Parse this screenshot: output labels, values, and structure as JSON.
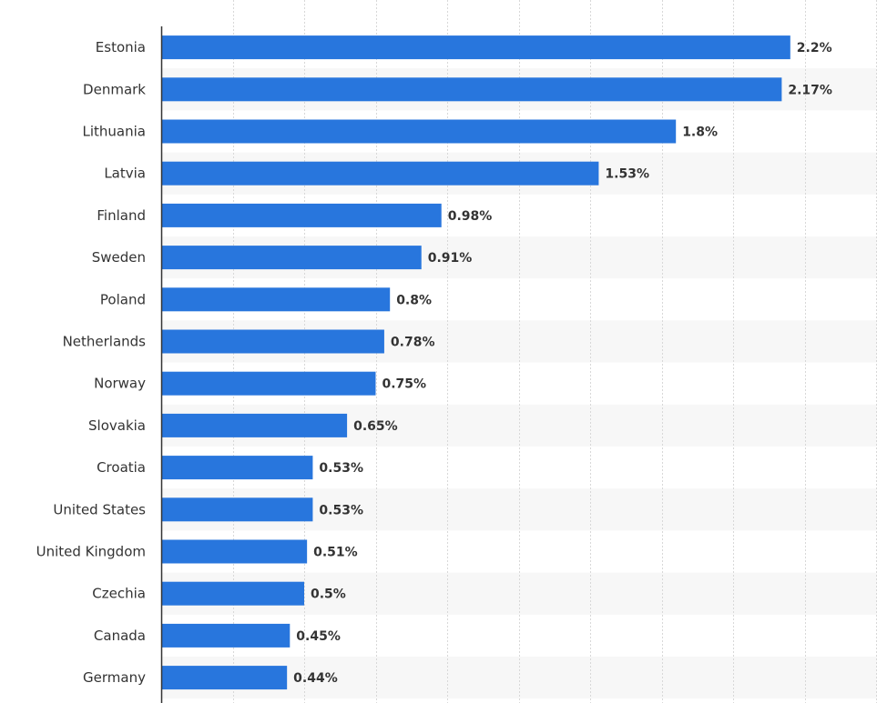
{
  "chart_data": {
    "type": "bar",
    "orientation": "horizontal",
    "title": "",
    "xlabel": "",
    "ylabel": "",
    "categories": [
      "Estonia",
      "Denmark",
      "Lithuania",
      "Latvia",
      "Finland",
      "Sweden",
      "Poland",
      "Netherlands",
      "Norway",
      "Slovakia",
      "Croatia",
      "United States",
      "United Kingdom",
      "Czechia",
      "Canada",
      "Germany"
    ],
    "values": [
      2.2,
      2.17,
      1.8,
      1.53,
      0.98,
      0.91,
      0.8,
      0.78,
      0.75,
      0.65,
      0.53,
      0.53,
      0.51,
      0.5,
      0.45,
      0.44
    ],
    "value_labels": [
      "2.2%",
      "2.17%",
      "1.8%",
      "1.53%",
      "0.98%",
      "0.91%",
      "0.8%",
      "0.78%",
      "0.75%",
      "0.65%",
      "0.53%",
      "0.53%",
      "0.51%",
      "0.5%",
      "0.45%",
      "0.44%"
    ],
    "xlim": [
      0,
      2.5
    ],
    "grid": true,
    "bar_color": "#2876dd",
    "stripe_color": "#f7f7f7",
    "gridline_color": "#d8d8d8"
  }
}
